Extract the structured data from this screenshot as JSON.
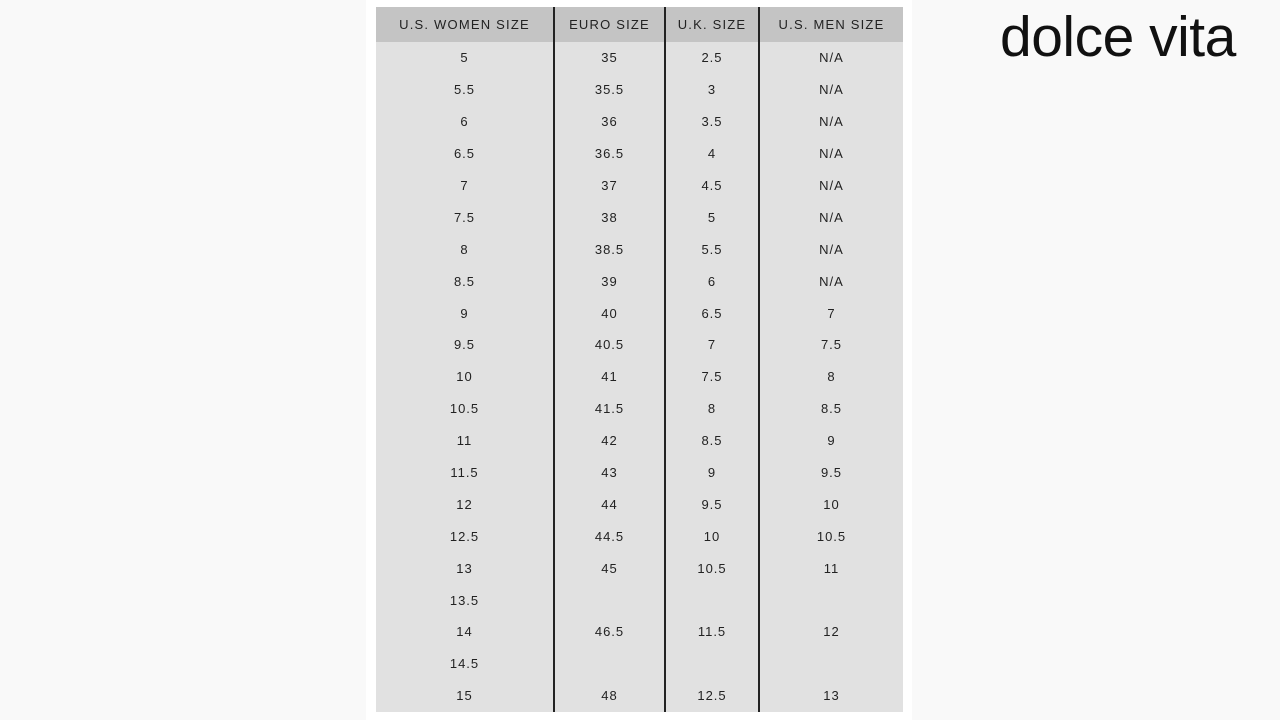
{
  "brand": "dolce vita",
  "table": {
    "headers": [
      "U.S. WOMEN SIZE",
      "EURO SIZE",
      "U.K. SIZE",
      "U.S. MEN SIZE"
    ],
    "rows": [
      [
        "5",
        "35",
        "2.5",
        "N/A"
      ],
      [
        "5.5",
        "35.5",
        "3",
        "N/A"
      ],
      [
        "6",
        "36",
        "3.5",
        "N/A"
      ],
      [
        "6.5",
        "36.5",
        "4",
        "N/A"
      ],
      [
        "7",
        "37",
        "4.5",
        "N/A"
      ],
      [
        "7.5",
        "38",
        "5",
        "N/A"
      ],
      [
        "8",
        "38.5",
        "5.5",
        "N/A"
      ],
      [
        "8.5",
        "39",
        "6",
        "N/A"
      ],
      [
        "9",
        "40",
        "6.5",
        "7"
      ],
      [
        "9.5",
        "40.5",
        "7",
        "7.5"
      ],
      [
        "10",
        "41",
        "7.5",
        "8"
      ],
      [
        "10.5",
        "41.5",
        "8",
        "8.5"
      ],
      [
        "11",
        "42",
        "8.5",
        "9"
      ],
      [
        "11.5",
        "43",
        "9",
        "9.5"
      ],
      [
        "12",
        "44",
        "9.5",
        "10"
      ],
      [
        "12.5",
        "44.5",
        "10",
        "10.5"
      ],
      [
        "13",
        "45",
        "10.5",
        "11"
      ],
      [
        "13.5",
        "",
        "",
        ""
      ],
      [
        "14",
        "46.5",
        "11.5",
        "12"
      ],
      [
        "14.5",
        "",
        "",
        ""
      ],
      [
        "15",
        "48",
        "12.5",
        "13"
      ]
    ]
  }
}
